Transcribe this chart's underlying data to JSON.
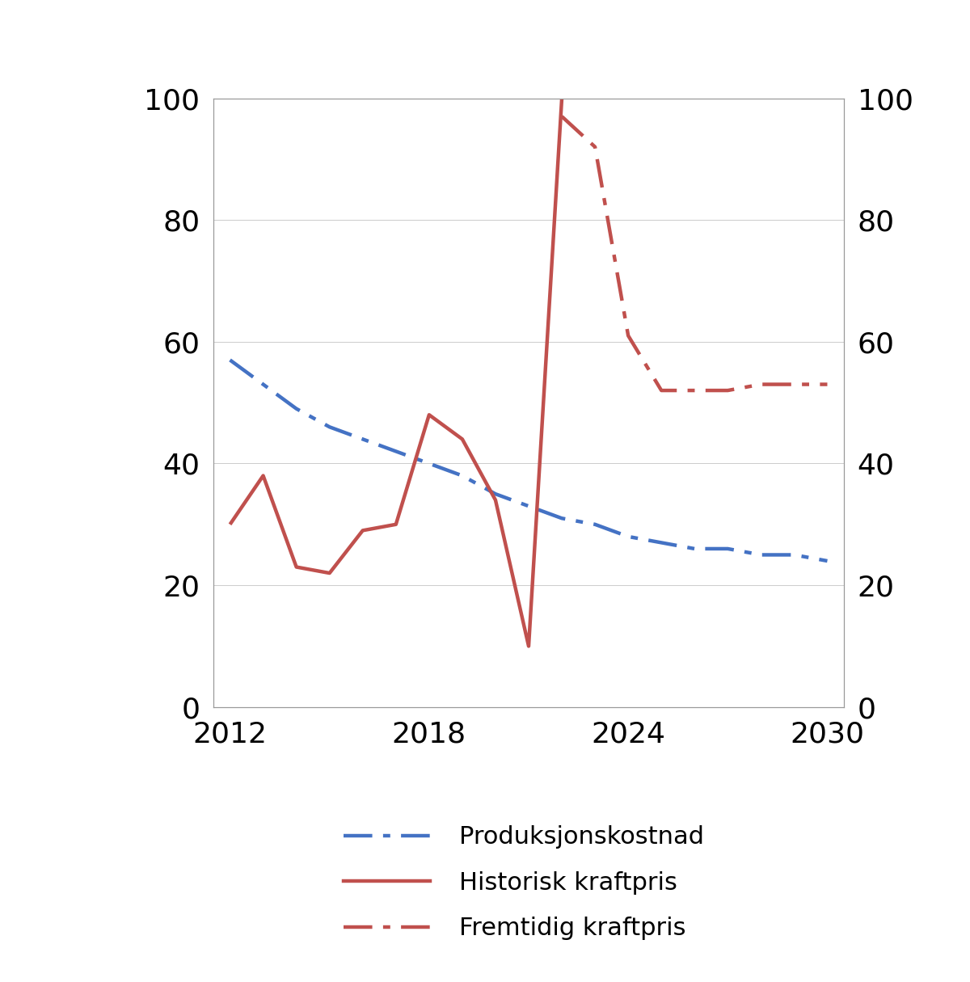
{
  "produksjonskostnad_x": [
    2012,
    2013,
    2014,
    2015,
    2016,
    2017,
    2018,
    2019,
    2020,
    2021,
    2022,
    2023,
    2024,
    2025,
    2026,
    2027,
    2028,
    2029,
    2030
  ],
  "produksjonskostnad_y": [
    57,
    53,
    49,
    46,
    44,
    42,
    40,
    38,
    35,
    33,
    31,
    30,
    28,
    27,
    26,
    26,
    25,
    25,
    24
  ],
  "historisk_x": [
    2012,
    2013,
    2014,
    2015,
    2016,
    2017,
    2018,
    2019,
    2020,
    2021,
    2022
  ],
  "historisk_y": [
    30,
    38,
    23,
    22,
    29,
    30,
    48,
    44,
    34,
    10,
    100
  ],
  "fremtidig_x": [
    2022,
    2023,
    2024,
    2025,
    2026,
    2027,
    2028,
    2029,
    2030
  ],
  "fremtidig_y": [
    97,
    92,
    61,
    52,
    52,
    52,
    53,
    53,
    53
  ],
  "ylim": [
    0,
    100
  ],
  "xlim": [
    2011.5,
    2030.5
  ],
  "yticks": [
    0,
    20,
    40,
    60,
    80,
    100
  ],
  "xticks": [
    2012,
    2018,
    2024,
    2030
  ],
  "blue_color": "#4472C4",
  "red_color": "#C0504D",
  "legend_labels": [
    "Produksjonskostnad",
    "Historisk kraftpris",
    "Fremtidig kraftpris"
  ],
  "background_color": "#FFFFFF",
  "tick_label_fontsize": 26,
  "legend_fontsize": 22,
  "linewidth": 3.2,
  "spine_color": "#999999"
}
